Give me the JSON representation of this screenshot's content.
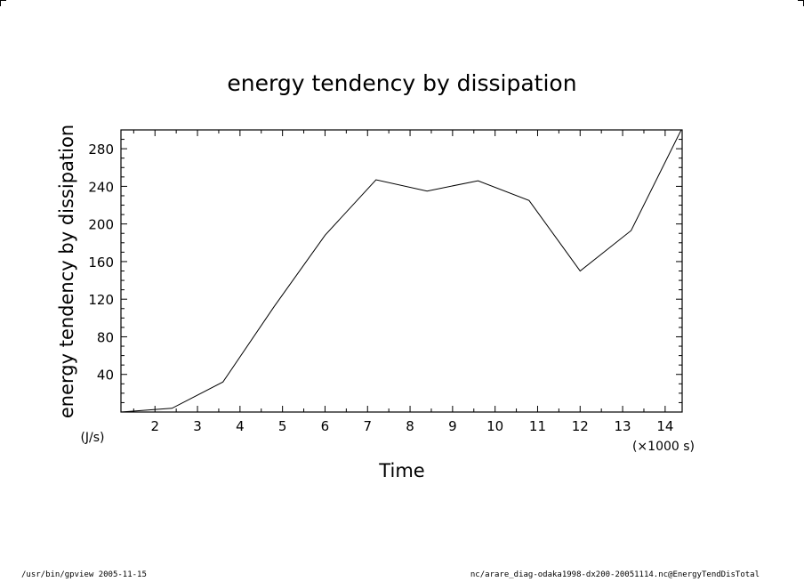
{
  "chart_data": {
    "type": "line",
    "title": "energy tendency by dissipation",
    "xlabel": "Time",
    "x_unit": "(×1000 s)",
    "ylabel": "energy tendency by dissipation",
    "y_unit": "(J/s)",
    "xlim": [
      1.2,
      14.4
    ],
    "ylim": [
      0,
      300
    ],
    "x_ticks": [
      2,
      3,
      4,
      5,
      6,
      7,
      8,
      9,
      10,
      11,
      12,
      13,
      14
    ],
    "y_ticks": [
      40,
      80,
      120,
      160,
      200,
      240,
      280
    ],
    "grid": false,
    "series": [
      {
        "x": [
          1.2,
          2.4,
          3.6,
          4.8,
          6.0,
          7.2,
          8.4,
          9.6,
          10.8,
          12.0,
          13.2,
          14.4
        ],
        "values": [
          0,
          4,
          32,
          112,
          188,
          247,
          235,
          246,
          225,
          150,
          193,
          302
        ]
      }
    ]
  },
  "footer": {
    "left": "/usr/bin/gpview   2005-11-15",
    "right": "nc/arare_diag-odaka1998-dx200-20051114.nc@EnergyTendDisTotal"
  }
}
